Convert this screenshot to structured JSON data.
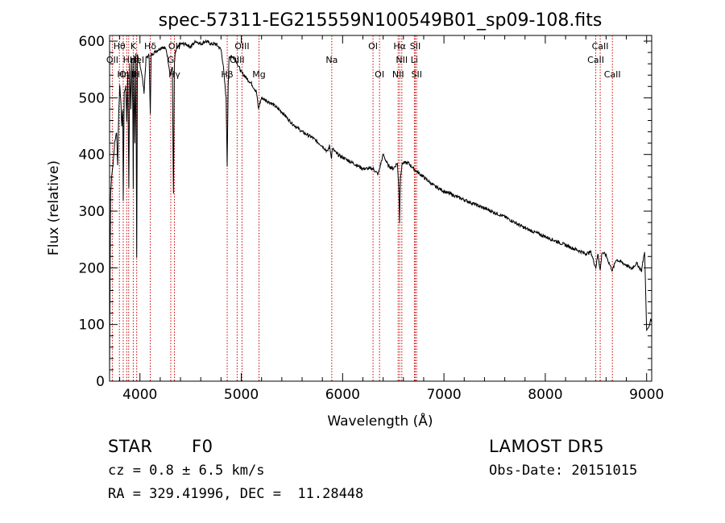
{
  "chart_data": {
    "type": "line",
    "title": "spec-57311-EG215559N100549B01_sp09-108.fits",
    "xlabel": "Wavelength (Å)",
    "ylabel": "Flux (relative)",
    "xlim": [
      3700,
      9050
    ],
    "ylim": [
      0,
      610
    ],
    "xticks": [
      4000,
      5000,
      6000,
      7000,
      8000,
      9000
    ],
    "yticks": [
      0,
      100,
      200,
      300,
      400,
      500,
      600
    ],
    "grid": false,
    "series": [
      {
        "x": [
          3700,
          3710,
          3720,
          3735,
          3750,
          3760,
          3770,
          3780,
          3790,
          3800,
          3810,
          3820,
          3830,
          3835,
          3845,
          3860,
          3870,
          3880,
          3890,
          3900,
          3910,
          3920,
          3930,
          3934,
          3940,
          3950,
          3960,
          3968,
          3975,
          3990,
          4000,
          4020,
          4040,
          4060,
          4090,
          4102,
          4110,
          4140,
          4180,
          4220,
          4260,
          4300,
          4320,
          4330,
          4340,
          4350,
          4360,
          4400,
          4450,
          4500,
          4550,
          4600,
          4650,
          4700,
          4750,
          4800,
          4820,
          4840,
          4850,
          4861,
          4870,
          4880,
          4900,
          4950,
          5000,
          5050,
          5100,
          5150,
          5170,
          5183,
          5200,
          5300,
          5400,
          5500,
          5600,
          5700,
          5800,
          5850,
          5870,
          5890,
          5900,
          5950,
          6000,
          6100,
          6200,
          6300,
          6350,
          6400,
          6450,
          6500,
          6540,
          6555,
          6562,
          6570,
          6590,
          6650,
          6700,
          6800,
          6900,
          7000,
          7200,
          7400,
          7600,
          7800,
          8000,
          8200,
          8400,
          8450,
          8498,
          8520,
          8542,
          8560,
          8600,
          8630,
          8662,
          8700,
          8750,
          8800,
          8850,
          8900,
          8950,
          8980,
          9000,
          9020,
          9030,
          9040,
          9048
        ],
        "y": [
          10,
          330,
          360,
          385,
          420,
          430,
          440,
          380,
          470,
          520,
          500,
          450,
          480,
          320,
          510,
          520,
          460,
          540,
          340,
          560,
          480,
          570,
          470,
          340,
          575,
          420,
          580,
          220,
          575,
          560,
          560,
          540,
          510,
          570,
          575,
          470,
          575,
          580,
          585,
          590,
          585,
          540,
          555,
          330,
          560,
          580,
          585,
          595,
          595,
          590,
          600,
          595,
          600,
          595,
          595,
          585,
          560,
          520,
          500,
          380,
          520,
          570,
          575,
          565,
          545,
          535,
          525,
          510,
          480,
          490,
          500,
          490,
          475,
          455,
          440,
          430,
          415,
          405,
          415,
          395,
          410,
          400,
          395,
          385,
          375,
          375,
          365,
          400,
          380,
          375,
          385,
          340,
          280,
          360,
          385,
          385,
          375,
          360,
          345,
          335,
          320,
          305,
          290,
          270,
          255,
          240,
          225,
          228,
          200,
          225,
          195,
          228,
          222,
          208,
          195,
          215,
          210,
          205,
          198,
          208,
          195,
          230,
          90,
          95,
          100,
          110,
          105
        ]
      }
    ]
  },
  "line_labels": {
    "row1": [
      {
        "text": "Hθ",
        "wl": 3797
      },
      {
        "text": "K",
        "wl": 3934
      },
      {
        "text": "Hδ",
        "wl": 4102
      },
      {
        "text": "OII",
        "wl": 4340
      },
      {
        "text": "OIII",
        "wl": 5007
      },
      {
        "text": "OI",
        "wl": 6300
      },
      {
        "text": "Hα",
        "wl": 6563
      },
      {
        "text": "SII",
        "wl": 6717
      },
      {
        "text": "CaII",
        "wl": 8542
      }
    ],
    "row2": [
      {
        "text": "OII",
        "wl": 3727
      },
      {
        "text": "Hε",
        "wl": 3889
      },
      {
        "text": "HeI",
        "wl": 3970
      },
      {
        "text": "G",
        "wl": 4304
      },
      {
        "text": "OIII",
        "wl": 4959
      },
      {
        "text": "Na",
        "wl": 5893
      },
      {
        "text": "NII",
        "wl": 6584
      },
      {
        "text": "Li",
        "wl": 6708
      },
      {
        "text": "CaII",
        "wl": 8498
      }
    ],
    "row3": [
      {
        "text": "OIII",
        "wl": 3869
      },
      {
        "text": "Hη",
        "wl": 3835
      },
      {
        "text": "H",
        "wl": 3968
      },
      {
        "text": "Hγ",
        "wl": 4340
      },
      {
        "text": "Hβ",
        "wl": 4861
      },
      {
        "text": "Mg",
        "wl": 5175
      },
      {
        "text": "OI",
        "wl": 6364
      },
      {
        "text": "NII",
        "wl": 6548
      },
      {
        "text": "SII",
        "wl": 6731
      },
      {
        "text": "CaII",
        "wl": 8662
      }
    ]
  },
  "marker_lines": [
    3727,
    3797,
    3835,
    3869,
    3889,
    3934,
    3968,
    4102,
    4304,
    4340,
    4861,
    4959,
    5007,
    5175,
    5893,
    6300,
    6364,
    6548,
    6563,
    6584,
    6708,
    6717,
    6731,
    8498,
    8542,
    8662
  ],
  "info": {
    "class_label": "STAR",
    "subclass": "F0",
    "survey": "LAMOST DR5",
    "cz": "cz = 0.8 ± 6.5 km/s",
    "obs_date": "Obs-Date: 20151015",
    "radec": "RA = 329.41996, DEC =  11.28448"
  },
  "colors": {
    "axis": "#000000",
    "spectrum": "#000000",
    "marker": "#cc0000"
  }
}
